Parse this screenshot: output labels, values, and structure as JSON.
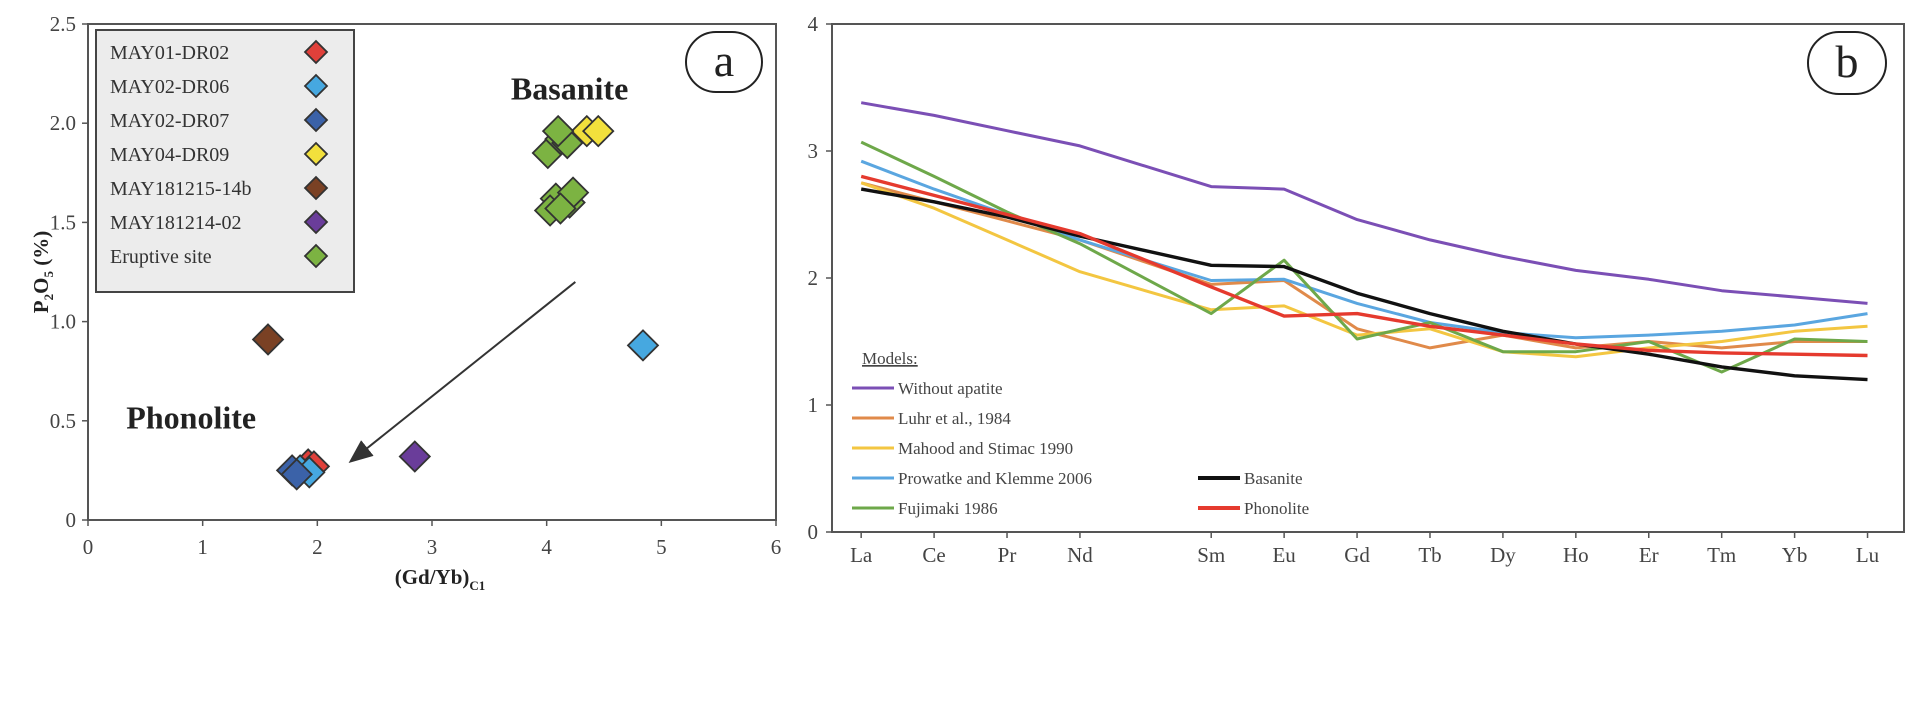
{
  "chart_data": [
    {
      "type": "scatter",
      "panel_label": "a",
      "xlabel": "(Gd/Yb)",
      "xlabel_sub": "C1",
      "ylabel": "P",
      "ylabel_sub": "2",
      "ylabel_mid": "O",
      "ylabel_sub2": "5",
      "ylabel_tail": " (%)",
      "xlim": [
        0,
        6
      ],
      "ylim": [
        0,
        2.5
      ],
      "xticks": [
        0,
        1,
        2,
        3,
        4,
        5,
        6
      ],
      "yticks": [
        0,
        0.5,
        1.0,
        1.5,
        2.0,
        2.5
      ],
      "ytick_labels": [
        "0",
        "0.5",
        "1.0",
        "1.5",
        "2.0",
        "2.5"
      ],
      "annotations": [
        {
          "text": "Basanite",
          "x": 4.2,
          "y": 2.12
        },
        {
          "text": "Phonolite",
          "x": 0.9,
          "y": 0.46
        }
      ],
      "arrow": {
        "from": [
          4.25,
          1.2
        ],
        "to": [
          2.3,
          0.3
        ]
      },
      "legend_position": "top-left",
      "series": [
        {
          "name": "MAY01-DR02",
          "color": "#e0403a",
          "points": [
            [
              1.92,
              0.28
            ],
            [
              1.97,
              0.27
            ]
          ]
        },
        {
          "name": "MAY02-DR06",
          "color": "#46a8e0",
          "points": [
            [
              4.84,
              0.88
            ],
            [
              1.85,
              0.25
            ],
            [
              1.93,
              0.24
            ]
          ]
        },
        {
          "name": "MAY02-DR07",
          "color": "#3b62a8",
          "points": [
            [
              1.78,
              0.25
            ],
            [
              1.82,
              0.23
            ]
          ]
        },
        {
          "name": "MAY04-DR09",
          "color": "#f2e03c",
          "points": [
            [
              4.35,
              1.96
            ],
            [
              4.45,
              1.96
            ]
          ]
        },
        {
          "name": "MAY181215-14b",
          "color": "#7a4124",
          "points": [
            [
              1.57,
              0.91
            ]
          ]
        },
        {
          "name": "MAY181214-02",
          "color": "#6a3d9a",
          "points": [
            [
              2.85,
              0.32
            ]
          ]
        },
        {
          "name": "Eruptive site",
          "color": "#7cb342",
          "points": [
            [
              4.01,
              1.85
            ],
            [
              4.12,
              1.92
            ],
            [
              4.18,
              1.9
            ],
            [
              4.1,
              1.96
            ],
            [
              4.08,
              1.62
            ],
            [
              4.2,
              1.6
            ],
            [
              4.23,
              1.65
            ],
            [
              4.03,
              1.56
            ],
            [
              4.12,
              1.57
            ]
          ]
        }
      ]
    },
    {
      "type": "line",
      "panel_label": "b",
      "categories": [
        "La",
        "Ce",
        "Pr",
        "Nd",
        "Sm",
        "Eu",
        "Gd",
        "Tb",
        "Dy",
        "Ho",
        "Er",
        "Tm",
        "Yb",
        "Lu"
      ],
      "category_positions": [
        1,
        2,
        3,
        4,
        5.8,
        6.8,
        7.8,
        8.8,
        9.8,
        10.8,
        11.8,
        12.8,
        13.8,
        14.8
      ],
      "xlim": [
        0.6,
        15.3
      ],
      "ylim": [
        0,
        4
      ],
      "yticks": [
        0,
        1,
        2,
        3,
        4
      ],
      "models_title": "Models:",
      "series": [
        {
          "name": "Without apatite",
          "color": "#7b4fb5",
          "legend": "models",
          "values": [
            3.38,
            3.28,
            3.16,
            3.04,
            2.72,
            2.7,
            2.46,
            2.3,
            2.17,
            2.06,
            1.99,
            1.9,
            1.85,
            1.8
          ]
        },
        {
          "name": "Luhr et al., 1984",
          "color": "#e08a4a",
          "legend": "models",
          "values": [
            2.75,
            2.6,
            2.45,
            2.3,
            1.95,
            1.98,
            1.6,
            1.45,
            1.55,
            1.45,
            1.5,
            1.45,
            1.5,
            1.5
          ]
        },
        {
          "name": "Mahood and Stimac 1990",
          "color": "#f3c641",
          "legend": "models",
          "values": [
            2.75,
            2.55,
            2.3,
            2.05,
            1.75,
            1.78,
            1.55,
            1.6,
            1.42,
            1.38,
            1.45,
            1.5,
            1.58,
            1.62
          ]
        },
        {
          "name": "Prowatke and Klemme 2006",
          "color": "#5aa6e0",
          "legend": "models",
          "values": [
            2.92,
            2.7,
            2.5,
            2.3,
            1.98,
            1.99,
            1.8,
            1.65,
            1.57,
            1.53,
            1.55,
            1.58,
            1.63,
            1.72
          ]
        },
        {
          "name": "Fujimaki 1986",
          "color": "#6ea84a",
          "legend": "models",
          "values": [
            3.07,
            2.8,
            2.52,
            2.27,
            1.72,
            2.14,
            1.52,
            1.65,
            1.42,
            1.42,
            1.5,
            1.26,
            1.52,
            1.5
          ]
        },
        {
          "name": "Basanite",
          "color": "#111111",
          "legend": "rocks",
          "values": [
            2.7,
            2.6,
            2.48,
            2.33,
            2.1,
            2.09,
            1.88,
            1.72,
            1.58,
            1.48,
            1.4,
            1.3,
            1.23,
            1.2
          ]
        },
        {
          "name": "Phonolite",
          "color": "#e53a2e",
          "legend": "rocks",
          "values": [
            2.8,
            2.65,
            2.5,
            2.35,
            1.93,
            1.7,
            1.72,
            1.62,
            1.55,
            1.48,
            1.43,
            1.41,
            1.4,
            1.39
          ]
        }
      ]
    }
  ]
}
